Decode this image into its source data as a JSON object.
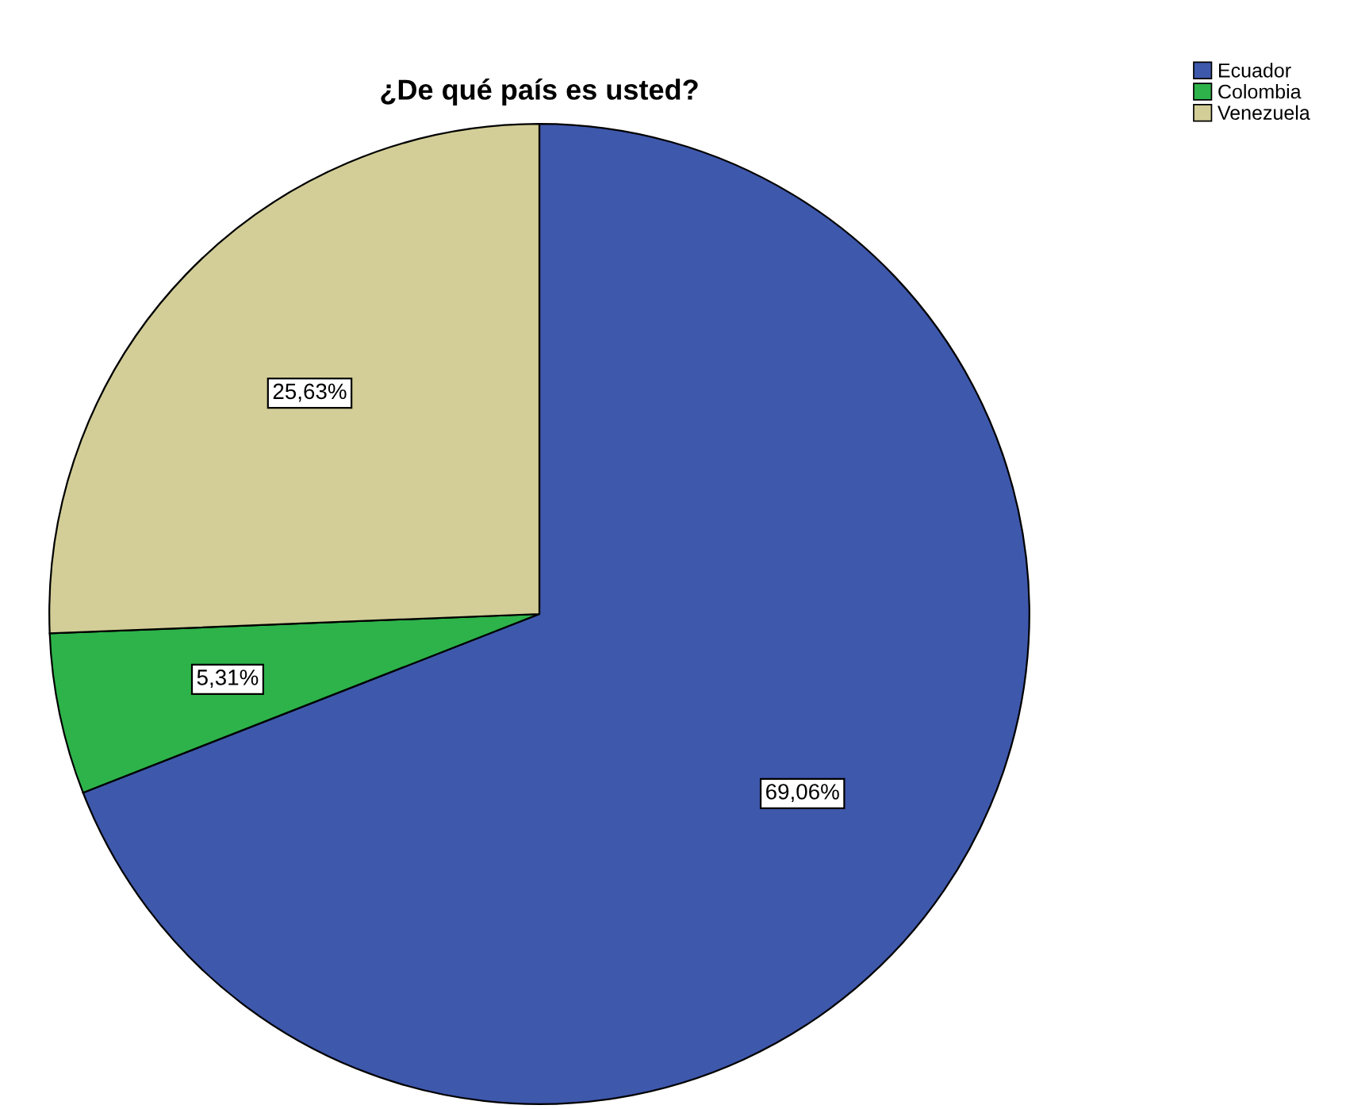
{
  "chart_data": {
    "type": "pie",
    "title": "¿De qué país es usted?",
    "categories": [
      "Ecuador",
      "Colombia",
      "Venezuela"
    ],
    "values": [
      69.06,
      5.31,
      25.63
    ],
    "colors": [
      "#3e58ac",
      "#2db34a",
      "#d3ce97"
    ],
    "value_labels": [
      "69,06%",
      "5,31%",
      "25,63%"
    ],
    "legend": "top right"
  }
}
